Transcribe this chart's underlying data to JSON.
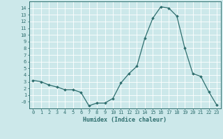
{
  "title": "",
  "xlabel": "Humidex (Indice chaleur)",
  "ylabel": "",
  "x": [
    0,
    1,
    2,
    3,
    4,
    5,
    6,
    7,
    8,
    9,
    10,
    11,
    12,
    13,
    14,
    15,
    16,
    17,
    18,
    19,
    20,
    21,
    22,
    23
  ],
  "y": [
    3.2,
    3.0,
    2.5,
    2.2,
    1.8,
    1.8,
    1.4,
    -0.6,
    -0.2,
    -0.2,
    0.5,
    2.8,
    4.2,
    5.3,
    9.5,
    12.5,
    14.2,
    14.0,
    12.8,
    8.0,
    4.2,
    3.8,
    1.5,
    -0.5
  ],
  "line_color": "#2e6e6e",
  "bg_color": "#cce8ea",
  "grid_color": "#ffffff",
  "ylim": [
    -1,
    15
  ],
  "yticks": [
    0,
    1,
    2,
    3,
    4,
    5,
    6,
    7,
    8,
    9,
    10,
    11,
    12,
    13,
    14
  ],
  "xticks": [
    0,
    1,
    2,
    3,
    4,
    5,
    6,
    7,
    8,
    9,
    10,
    11,
    12,
    13,
    14,
    15,
    16,
    17,
    18,
    19,
    20,
    21,
    22,
    23
  ],
  "tick_fontsize": 5,
  "xlabel_fontsize": 6,
  "marker": "D",
  "markersize": 1.8,
  "linewidth": 0.9
}
